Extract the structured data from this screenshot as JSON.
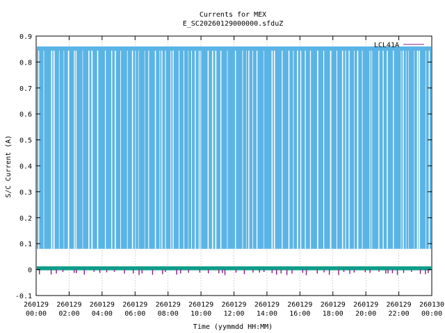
{
  "chart_data": {
    "type": "line",
    "title": "Currents for MEX",
    "subtitle": "E_SC20260129000000.sfduZ",
    "xlabel": "Time (yymmdd HH:MM)",
    "ylabel": "S/C Current (A)",
    "ylim": [
      -0.1,
      0.9
    ],
    "yticks": [
      -0.1,
      0,
      0.1,
      0.2,
      0.3,
      0.4,
      0.5,
      0.6,
      0.7,
      0.8,
      0.9
    ],
    "xlim_hours": [
      0,
      24
    ],
    "xticks": [
      {
        "hour": 0,
        "date": "260129",
        "time": "00:00"
      },
      {
        "hour": 2,
        "date": "260129",
        "time": "02:00"
      },
      {
        "hour": 4,
        "date": "260129",
        "time": "04:00"
      },
      {
        "hour": 6,
        "date": "260129",
        "time": "06:00"
      },
      {
        "hour": 8,
        "date": "260129",
        "time": "08:00"
      },
      {
        "hour": 10,
        "date": "260129",
        "time": "10:00"
      },
      {
        "hour": 12,
        "date": "260129",
        "time": "12:00"
      },
      {
        "hour": 14,
        "date": "260129",
        "time": "14:00"
      },
      {
        "hour": 16,
        "date": "260129",
        "time": "16:00"
      },
      {
        "hour": 18,
        "date": "260129",
        "time": "18:00"
      },
      {
        "hour": 20,
        "date": "260129",
        "time": "20:00"
      },
      {
        "hour": 22,
        "date": "260129",
        "time": "22:00"
      },
      {
        "hour": 24,
        "date": "260130",
        "time": "00:00"
      }
    ],
    "grid": true,
    "legend_position": "top-right",
    "series": [
      {
        "name": "LCL41A",
        "color": "#8b1a89",
        "low": 0.0,
        "high": 0.01
      },
      {
        "name": "",
        "color": "#0e9e8a",
        "low": 0.0,
        "high": 0.01
      },
      {
        "name": "",
        "color": "#5ab4e5",
        "low": 0.08,
        "high": 0.86
      }
    ]
  }
}
